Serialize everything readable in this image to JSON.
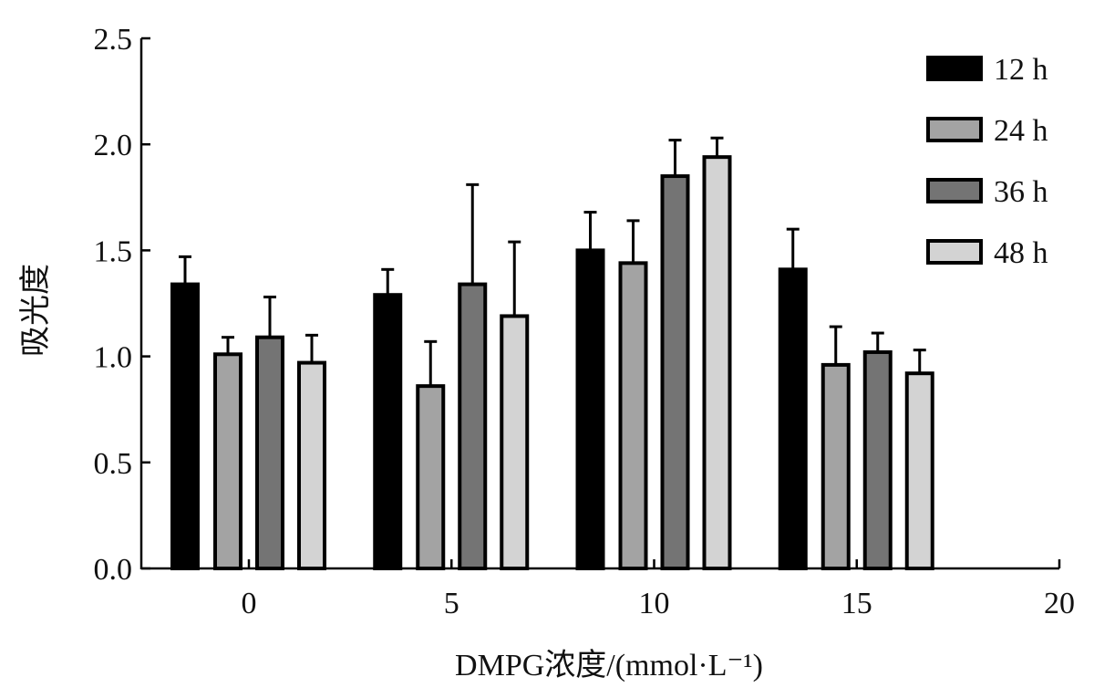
{
  "chart_data": {
    "type": "bar",
    "title": "",
    "xlabel": "DMPG浓度/(mmol·L⁻¹)",
    "ylabel": "吸光度",
    "ylim": [
      0,
      2.5
    ],
    "xlim": [
      -2.6,
      20
    ],
    "yticks": [
      "0.0",
      "0.5",
      "1.0",
      "1.5",
      "2.0",
      "2.5"
    ],
    "xticks": [
      "0",
      "5",
      "10",
      "15",
      "20"
    ],
    "categories": [
      0,
      5,
      10,
      15
    ],
    "legend_position": "top-right",
    "series": [
      {
        "name": "12 h",
        "color": "#000000",
        "values": [
          1.34,
          1.29,
          1.5,
          1.41
        ],
        "errors": [
          0.13,
          0.12,
          0.18,
          0.19
        ]
      },
      {
        "name": "24 h",
        "color": "#a3a3a3",
        "values": [
          1.01,
          0.86,
          1.44,
          0.96
        ],
        "errors": [
          0.08,
          0.21,
          0.2,
          0.18
        ]
      },
      {
        "name": "36 h",
        "color": "#747474",
        "values": [
          1.09,
          1.34,
          1.85,
          1.02
        ],
        "errors": [
          0.19,
          0.47,
          0.17,
          0.09
        ]
      },
      {
        "name": "48 h",
        "color": "#d3d3d3",
        "values": [
          0.97,
          1.19,
          1.94,
          0.92
        ],
        "errors": [
          0.13,
          0.35,
          0.09,
          0.11
        ]
      }
    ]
  }
}
